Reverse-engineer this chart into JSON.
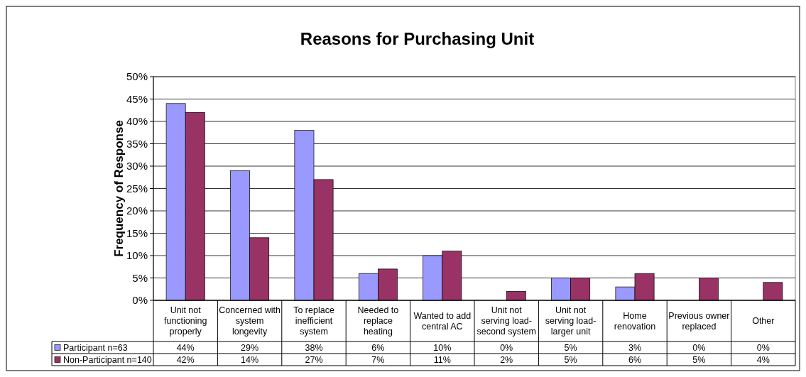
{
  "chart_data": {
    "type": "bar",
    "title": "Reasons for Purchasing Unit",
    "ylabel": "Frequency of Response",
    "categories": [
      "Unit not functioning properly",
      "Concerned with system longevity",
      "To replace inefficient system",
      "Needed to replace heating",
      "Wanted to add central AC",
      "Unit not serving load- second system",
      "Unit not serving load- larger unit",
      "Home renovation",
      "Previous owner replaced",
      "Other"
    ],
    "series": [
      {
        "name": "Participant n=63",
        "color": "#9999ff",
        "values": [
          44,
          29,
          38,
          6,
          10,
          0,
          5,
          3,
          0,
          0
        ],
        "value_labels": [
          "44%",
          "29%",
          "38%",
          "6%",
          "10%",
          "0%",
          "5%",
          "3%",
          "0%",
          "0%"
        ]
      },
      {
        "name": "Non-Participant n=140",
        "color": "#993366",
        "values": [
          42,
          14,
          27,
          7,
          11,
          2,
          5,
          6,
          5,
          4
        ],
        "value_labels": [
          "42%",
          "14%",
          "27%",
          "7%",
          "11%",
          "2%",
          "5%",
          "6%",
          "5%",
          "4%"
        ]
      }
    ],
    "ylim": [
      0,
      50
    ],
    "yticks": [
      {
        "value": 0,
        "label": "0%"
      },
      {
        "value": 5,
        "label": "5%"
      },
      {
        "value": 10,
        "label": "10%"
      },
      {
        "value": 15,
        "label": "15%"
      },
      {
        "value": 20,
        "label": "20%"
      },
      {
        "value": 25,
        "label": "25%"
      },
      {
        "value": 30,
        "label": "30%"
      },
      {
        "value": 35,
        "label": "35%"
      },
      {
        "value": 40,
        "label": "40%"
      },
      {
        "value": 45,
        "label": "45%"
      },
      {
        "value": 50,
        "label": "50%"
      }
    ],
    "grid": "y",
    "legend": "bottom"
  }
}
